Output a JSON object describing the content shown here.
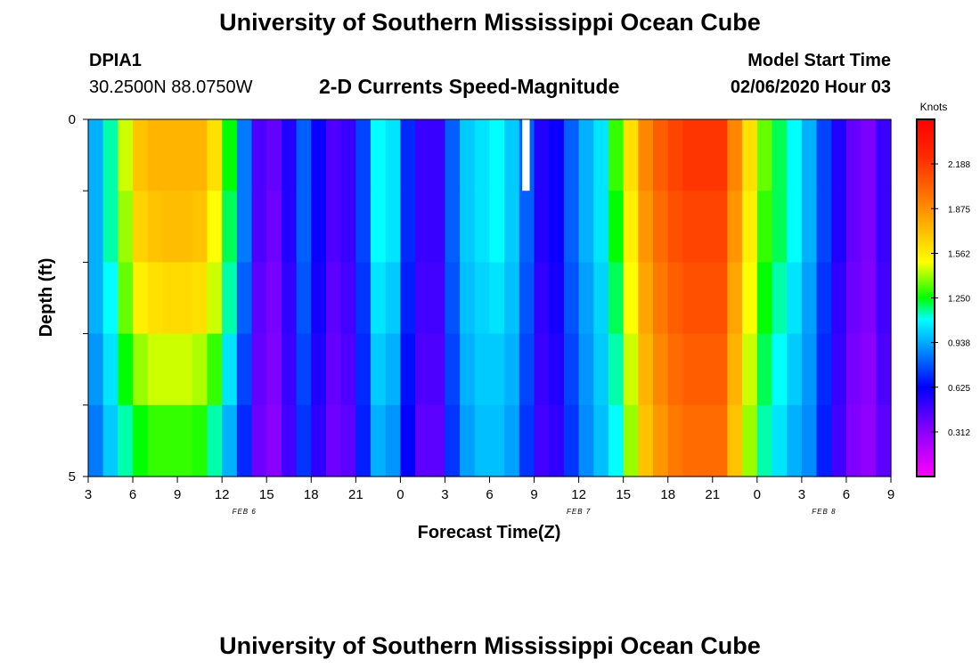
{
  "header": {
    "title": "University of Southern Mississippi Ocean Cube",
    "station_id": "DPIA1",
    "station_coords": "30.2500N 88.0750W",
    "model_start_label": "Model Start Time",
    "model_start_value": "02/06/2020 Hour 03"
  },
  "footer": {
    "title": "University of Southern Mississippi Ocean Cube"
  },
  "chart_data": {
    "type": "heatmap",
    "title": "2-D Currents Speed-Magnitude",
    "xlabel": "Forecast Time(Z)",
    "ylabel": "Depth (ft)",
    "x_tick_labels": [
      "3",
      "6",
      "9",
      "12",
      "15",
      "18",
      "21",
      "0",
      "3",
      "6",
      "9",
      "12",
      "15",
      "18",
      "21",
      "0",
      "3",
      "6",
      "9"
    ],
    "day_labels": [
      {
        "label": "FEB 6",
        "tick_index": 3.5
      },
      {
        "label": "FEB 7",
        "tick_index": 11
      },
      {
        "label": "FEB 8",
        "tick_index": 16.5
      }
    ],
    "x_range_hours": [
      0,
      54
    ],
    "y_tick_labels": [
      "0",
      "5"
    ],
    "ylim": [
      0,
      5
    ],
    "y_inverted": true,
    "colorbar": {
      "unit": "Knots",
      "range": [
        0,
        2.5
      ],
      "tick_labels": [
        "0.312",
        "0.625",
        "0.938",
        "1.250",
        "1.562",
        "1.875",
        "2.188"
      ],
      "tick_values": [
        0.312,
        0.625,
        0.938,
        1.25,
        1.562,
        1.875,
        2.188
      ]
    },
    "depth_rows": 5,
    "time_columns": 54,
    "missing_cells": [
      {
        "hour": 29,
        "depth_index": 0
      }
    ],
    "speed_knots": [
      [
        0.95,
        1.15,
        1.45,
        1.7,
        1.75,
        1.75,
        1.75,
        1.75,
        1.6,
        1.25,
        0.85,
        0.45,
        0.4,
        0.55,
        0.8,
        0.6,
        0.45,
        0.5,
        0.75,
        1.1,
        1.05,
        0.7,
        0.5,
        0.5,
        0.8,
        1.0,
        1.05,
        1.1,
        1.0,
        0.8,
        0.55,
        0.6,
        0.8,
        0.95,
        1.05,
        1.3,
        1.6,
        1.9,
        2.05,
        2.15,
        2.2,
        2.2,
        2.2,
        1.9,
        1.6,
        1.35,
        1.2,
        1.1,
        0.95,
        0.75,
        0.55,
        0.4,
        0.35,
        0.5
      ],
      [
        0.95,
        1.15,
        1.4,
        1.65,
        1.7,
        1.72,
        1.72,
        1.7,
        1.5,
        1.2,
        0.85,
        0.45,
        0.38,
        0.55,
        0.8,
        0.6,
        0.45,
        0.5,
        0.75,
        1.1,
        1.05,
        0.7,
        0.5,
        0.5,
        0.8,
        1.0,
        1.05,
        1.1,
        1.0,
        0.8,
        0.55,
        0.6,
        0.8,
        0.95,
        1.05,
        1.25,
        1.55,
        1.85,
        2.0,
        2.1,
        2.15,
        2.15,
        2.15,
        1.85,
        1.55,
        1.3,
        1.2,
        1.1,
        0.95,
        0.75,
        0.55,
        0.4,
        0.35,
        0.5
      ],
      [
        0.95,
        1.1,
        1.35,
        1.55,
        1.6,
        1.62,
        1.62,
        1.6,
        1.45,
        1.15,
        0.8,
        0.42,
        0.36,
        0.52,
        0.78,
        0.58,
        0.42,
        0.48,
        0.72,
        1.05,
        1.0,
        0.68,
        0.48,
        0.48,
        0.78,
        0.98,
        1.02,
        1.05,
        0.98,
        0.78,
        0.52,
        0.58,
        0.78,
        0.92,
        1.02,
        1.2,
        1.5,
        1.8,
        1.95,
        2.05,
        2.1,
        2.1,
        2.1,
        1.8,
        1.5,
        1.25,
        1.15,
        1.05,
        0.92,
        0.72,
        0.52,
        0.38,
        0.34,
        0.48
      ],
      [
        0.9,
        1.05,
        1.25,
        1.4,
        1.45,
        1.45,
        1.45,
        1.42,
        1.3,
        1.05,
        0.75,
        0.4,
        0.34,
        0.5,
        0.75,
        0.55,
        0.4,
        0.45,
        0.7,
        1.0,
        0.95,
        0.65,
        0.45,
        0.45,
        0.75,
        0.95,
        1.0,
        1.0,
        0.95,
        0.75,
        0.5,
        0.55,
        0.75,
        0.9,
        1.0,
        1.15,
        1.45,
        1.75,
        1.9,
        2.0,
        2.05,
        2.05,
        2.05,
        1.75,
        1.45,
        1.2,
        1.1,
        1.0,
        0.9,
        0.7,
        0.5,
        0.36,
        0.32,
        0.45
      ],
      [
        0.85,
        1.0,
        1.15,
        1.25,
        1.3,
        1.3,
        1.3,
        1.28,
        1.15,
        0.95,
        0.7,
        0.38,
        0.32,
        0.48,
        0.72,
        0.52,
        0.38,
        0.42,
        0.68,
        0.95,
        0.9,
        0.62,
        0.42,
        0.42,
        0.72,
        0.92,
        0.98,
        0.98,
        0.92,
        0.72,
        0.48,
        0.52,
        0.72,
        0.88,
        0.98,
        1.1,
        1.4,
        1.7,
        1.85,
        1.95,
        2.0,
        2.0,
        2.0,
        1.7,
        1.4,
        1.15,
        1.05,
        0.95,
        0.88,
        0.68,
        0.48,
        0.34,
        0.3,
        0.42
      ]
    ]
  }
}
